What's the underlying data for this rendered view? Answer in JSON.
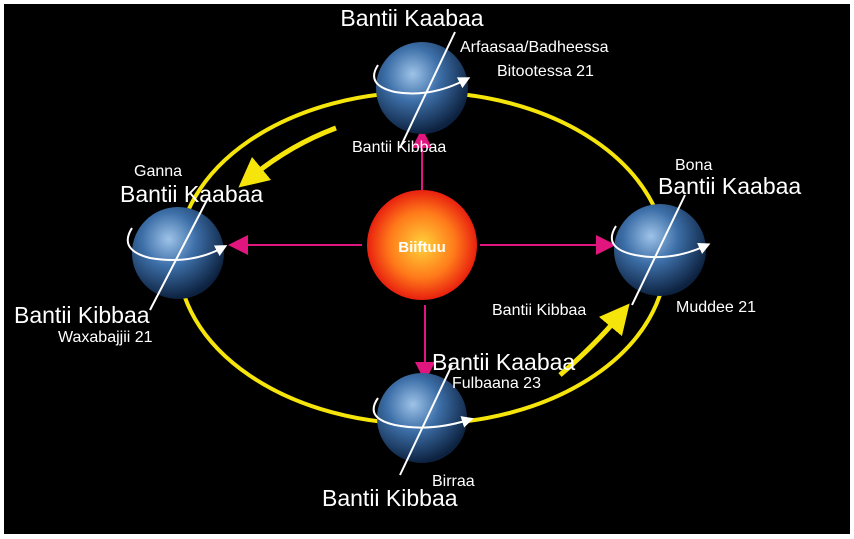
{
  "sun": {
    "label": "Biiftuu"
  },
  "positions": [
    {
      "north": "Bantii Kaabaa",
      "season": "Arfaasaa/Badheessa",
      "date": "Bitootessa 21",
      "south": "Bantii Kibbaa"
    },
    {
      "season": "Ganna",
      "north": "Bantii Kaabaa",
      "south": "Bantii Kibbaa",
      "date": "Waxabajjii 21"
    },
    {
      "season": "Bona",
      "north": "Bantii Kaabaa",
      "south": "Bantii Kibbaa",
      "date": "Muddee 21"
    },
    {
      "north": "Bantii Kaabaa",
      "date": "Fulbaana 23",
      "season": "Birraa",
      "south": "Bantii Kibbaa"
    }
  ]
}
